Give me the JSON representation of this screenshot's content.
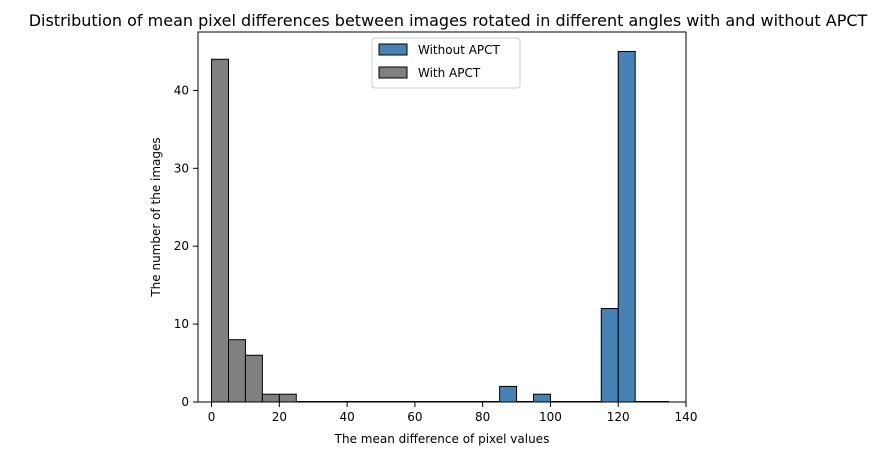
{
  "chart_data": {
    "type": "bar",
    "title": "Distribution of mean pixel differences between images rotated in different angles with and without APCT",
    "xlabel": "The mean difference of pixel values",
    "ylabel": "The number of the images",
    "xlim": [
      -4,
      140
    ],
    "ylim": [
      0,
      47.5
    ],
    "xticks": [
      0,
      20,
      40,
      60,
      80,
      100,
      120,
      140
    ],
    "yticks": [
      0,
      10,
      20,
      30,
      40
    ],
    "bin_width": 5,
    "legend_position": "top-center",
    "grid": false,
    "series": [
      {
        "name": "Without APCT",
        "color": "#4682b4",
        "bins": [
          {
            "x0": 85,
            "x1": 90,
            "count": 2
          },
          {
            "x0": 95,
            "x1": 100,
            "count": 1
          },
          {
            "x0": 115,
            "x1": 120,
            "count": 12
          },
          {
            "x0": 120,
            "x1": 125,
            "count": 45
          }
        ]
      },
      {
        "name": "With APCT",
        "color": "#808080",
        "bins": [
          {
            "x0": 0,
            "x1": 5,
            "count": 44
          },
          {
            "x0": 5,
            "x1": 10,
            "count": 8
          },
          {
            "x0": 10,
            "x1": 15,
            "count": 6
          },
          {
            "x0": 15,
            "x1": 20,
            "count": 1
          },
          {
            "x0": 20,
            "x1": 25,
            "count": 1
          }
        ]
      }
    ],
    "zero_baseline_ranges": [
      [
        0,
        135
      ]
    ]
  }
}
